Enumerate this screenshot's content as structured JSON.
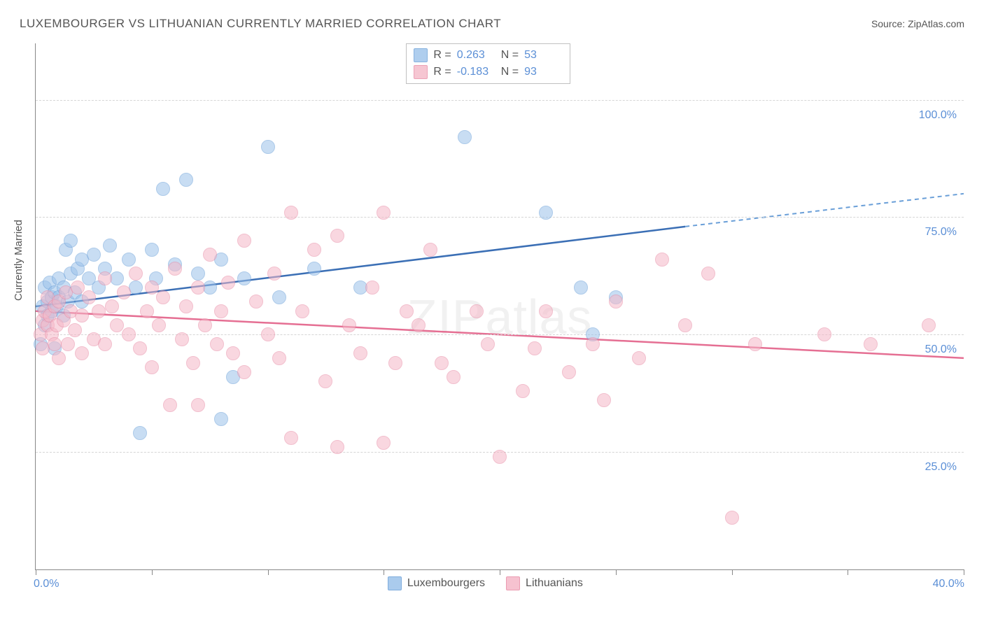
{
  "title": "LUXEMBOURGER VS LITHUANIAN CURRENTLY MARRIED CORRELATION CHART",
  "source": "Source: ZipAtlas.com",
  "watermark": "ZIPatlas",
  "ylabel": "Currently Married",
  "chart": {
    "type": "scatter",
    "xlim": [
      0,
      40
    ],
    "ylim": [
      0,
      112
    ],
    "x_ticks": [
      0,
      5,
      10,
      15,
      20,
      25,
      30,
      35,
      40
    ],
    "x_tick_labels": {
      "0": "0.0%",
      "40": "40.0%"
    },
    "y_gridlines": [
      25,
      50,
      75,
      100
    ],
    "y_tick_labels": {
      "25": "25.0%",
      "50": "50.0%",
      "75": "75.0%",
      "100": "100.0%"
    },
    "background_color": "#ffffff",
    "grid_color": "#d5d5d5",
    "axis_color": "#888888",
    "tick_label_color": "#5b8fd6",
    "marker_radius": 9,
    "series": [
      {
        "name": "Luxembourgers",
        "fill_color": "#9cc2ea",
        "fill_opacity": 0.55,
        "stroke_color": "#6a9fd8",
        "line_color": "#3b6fb5",
        "line_dash_color": "#6a9fd8",
        "R": "0.263",
        "N": "53",
        "trend": {
          "x1": 0,
          "y1": 56,
          "x2_solid": 28,
          "y2_solid": 73,
          "x2": 40,
          "y2": 80
        },
        "points": [
          [
            0.2,
            48
          ],
          [
            0.3,
            56
          ],
          [
            0.4,
            60
          ],
          [
            0.4,
            52
          ],
          [
            0.5,
            57
          ],
          [
            0.5,
            54
          ],
          [
            0.6,
            61
          ],
          [
            0.7,
            58
          ],
          [
            0.7,
            55
          ],
          [
            0.8,
            59
          ],
          [
            0.8,
            47
          ],
          [
            0.9,
            56
          ],
          [
            1.0,
            62
          ],
          [
            1.0,
            58
          ],
          [
            1.2,
            60
          ],
          [
            1.2,
            54
          ],
          [
            1.3,
            68
          ],
          [
            1.4,
            57
          ],
          [
            1.5,
            63
          ],
          [
            1.5,
            70
          ],
          [
            1.7,
            59
          ],
          [
            1.8,
            64
          ],
          [
            2.0,
            66
          ],
          [
            2.0,
            57
          ],
          [
            2.3,
            62
          ],
          [
            2.5,
            67
          ],
          [
            2.7,
            60
          ],
          [
            3.0,
            64
          ],
          [
            3.2,
            69
          ],
          [
            3.5,
            62
          ],
          [
            4.0,
            66
          ],
          [
            4.3,
            60
          ],
          [
            4.5,
            29
          ],
          [
            5.0,
            68
          ],
          [
            5.2,
            62
          ],
          [
            5.5,
            81
          ],
          [
            6.0,
            65
          ],
          [
            6.5,
            83
          ],
          [
            7.0,
            63
          ],
          [
            7.5,
            60
          ],
          [
            8.0,
            32
          ],
          [
            8.0,
            66
          ],
          [
            8.5,
            41
          ],
          [
            9.0,
            62
          ],
          [
            10.0,
            90
          ],
          [
            10.5,
            58
          ],
          [
            12.0,
            64
          ],
          [
            14.0,
            60
          ],
          [
            18.5,
            92
          ],
          [
            22.0,
            76
          ],
          [
            23.5,
            60
          ],
          [
            24.0,
            50
          ],
          [
            25.0,
            58
          ]
        ]
      },
      {
        "name": "Lithuanians",
        "fill_color": "#f5b8c8",
        "fill_opacity": 0.55,
        "stroke_color": "#e88ba5",
        "line_color": "#e56f93",
        "R": "-0.183",
        "N": "93",
        "trend": {
          "x1": 0,
          "y1": 55,
          "x2_solid": 40,
          "y2_solid": 45,
          "x2": 40,
          "y2": 45
        },
        "points": [
          [
            0.2,
            50
          ],
          [
            0.3,
            53
          ],
          [
            0.3,
            47
          ],
          [
            0.4,
            55
          ],
          [
            0.5,
            52
          ],
          [
            0.5,
            58
          ],
          [
            0.6,
            54
          ],
          [
            0.7,
            50
          ],
          [
            0.8,
            56
          ],
          [
            0.8,
            48
          ],
          [
            0.9,
            52
          ],
          [
            1.0,
            57
          ],
          [
            1.0,
            45
          ],
          [
            1.2,
            53
          ],
          [
            1.3,
            59
          ],
          [
            1.4,
            48
          ],
          [
            1.5,
            55
          ],
          [
            1.7,
            51
          ],
          [
            1.8,
            60
          ],
          [
            2.0,
            54
          ],
          [
            2.0,
            46
          ],
          [
            2.3,
            58
          ],
          [
            2.5,
            49
          ],
          [
            2.7,
            55
          ],
          [
            3.0,
            62
          ],
          [
            3.0,
            48
          ],
          [
            3.3,
            56
          ],
          [
            3.5,
            52
          ],
          [
            3.8,
            59
          ],
          [
            4.0,
            50
          ],
          [
            4.3,
            63
          ],
          [
            4.5,
            47
          ],
          [
            4.8,
            55
          ],
          [
            5.0,
            60
          ],
          [
            5.0,
            43
          ],
          [
            5.3,
            52
          ],
          [
            5.5,
            58
          ],
          [
            5.8,
            35
          ],
          [
            6.0,
            64
          ],
          [
            6.3,
            49
          ],
          [
            6.5,
            56
          ],
          [
            6.8,
            44
          ],
          [
            7.0,
            60
          ],
          [
            7.0,
            35
          ],
          [
            7.3,
            52
          ],
          [
            7.5,
            67
          ],
          [
            7.8,
            48
          ],
          [
            8.0,
            55
          ],
          [
            8.3,
            61
          ],
          [
            8.5,
            46
          ],
          [
            9.0,
            70
          ],
          [
            9.0,
            42
          ],
          [
            9.5,
            57
          ],
          [
            10.0,
            50
          ],
          [
            10.3,
            63
          ],
          [
            10.5,
            45
          ],
          [
            11.0,
            28
          ],
          [
            11.0,
            76
          ],
          [
            11.5,
            55
          ],
          [
            12.0,
            68
          ],
          [
            12.5,
            40
          ],
          [
            13.0,
            26
          ],
          [
            13.0,
            71
          ],
          [
            13.5,
            52
          ],
          [
            14.0,
            46
          ],
          [
            14.5,
            60
          ],
          [
            15.0,
            27
          ],
          [
            15.0,
            76
          ],
          [
            15.5,
            44
          ],
          [
            16.0,
            55
          ],
          [
            16.5,
            52
          ],
          [
            17.0,
            68
          ],
          [
            17.5,
            44
          ],
          [
            18.0,
            41
          ],
          [
            19.0,
            55
          ],
          [
            19.5,
            48
          ],
          [
            20.0,
            24
          ],
          [
            21.0,
            38
          ],
          [
            21.5,
            47
          ],
          [
            22.0,
            55
          ],
          [
            23.0,
            42
          ],
          [
            24.0,
            48
          ],
          [
            24.5,
            36
          ],
          [
            25.0,
            57
          ],
          [
            26.0,
            45
          ],
          [
            27.0,
            66
          ],
          [
            28.0,
            52
          ],
          [
            29.0,
            63
          ],
          [
            30.0,
            11
          ],
          [
            31.0,
            48
          ],
          [
            34.0,
            50
          ],
          [
            36.0,
            48
          ],
          [
            38.5,
            52
          ]
        ]
      }
    ]
  },
  "legend_top": {
    "R_label": "R =",
    "N_label": "N ="
  },
  "legend_bottom": [
    {
      "label": "Luxembourgers",
      "fill": "#9cc2ea",
      "stroke": "#6a9fd8"
    },
    {
      "label": "Lithuanians",
      "fill": "#f5b8c8",
      "stroke": "#e88ba5"
    }
  ]
}
